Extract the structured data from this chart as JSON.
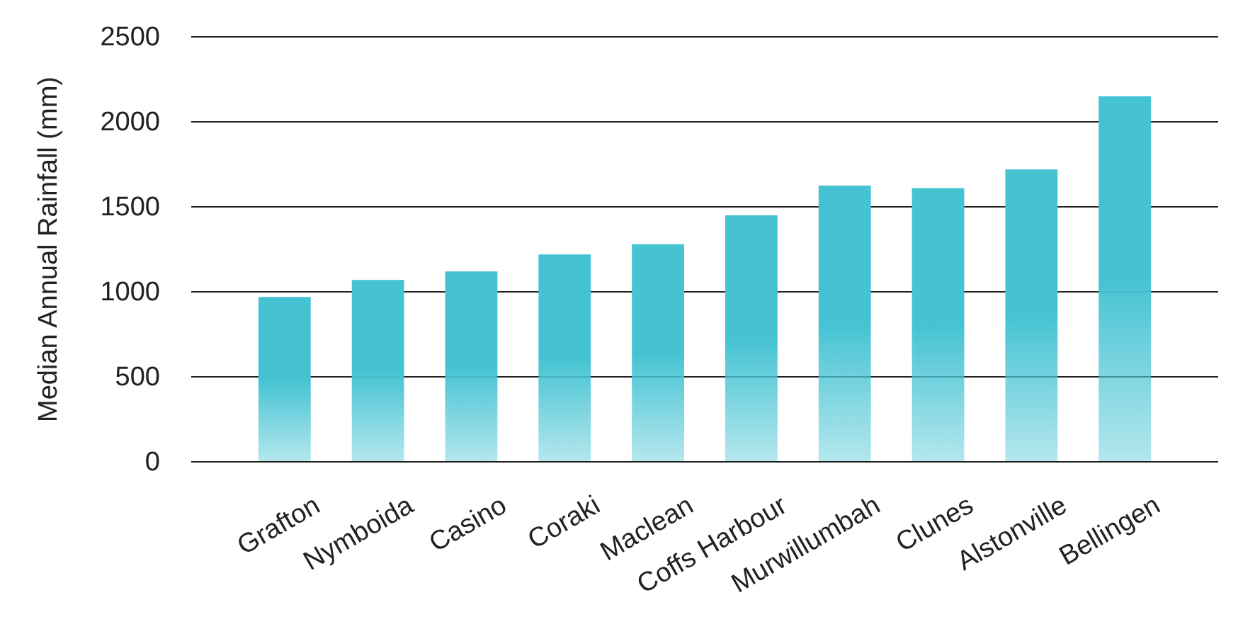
{
  "chart_data": {
    "type": "bar",
    "ylabel": "Median Annual Rainfall (mm)",
    "categories": [
      "Grafton",
      "Nymboida",
      "Casino",
      "Coraki",
      "Maclean",
      "Coffs Harbour",
      "Murwillumbah",
      "Clunes",
      "Alstonville",
      "Bellingen"
    ],
    "values": [
      970,
      1070,
      1120,
      1220,
      1280,
      1450,
      1625,
      1610,
      1720,
      2150
    ],
    "color": "#45c3d3",
    "ylim": [
      0,
      2500
    ],
    "yticks": [
      0,
      500,
      1000,
      1500,
      2000,
      2500
    ],
    "grid": "y"
  }
}
